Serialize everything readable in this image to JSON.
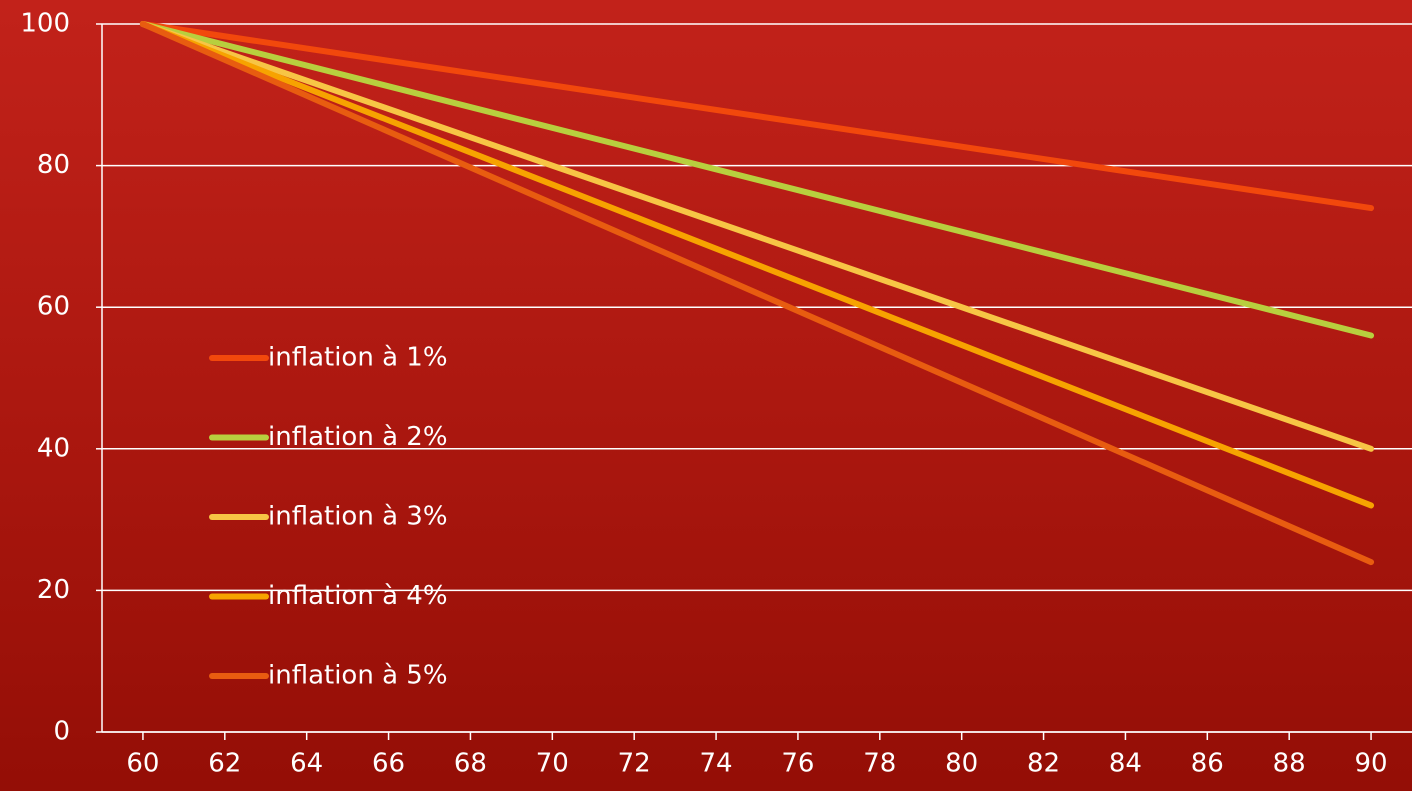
{
  "chart_data": {
    "type": "line",
    "x": [
      60,
      90
    ],
    "series": [
      {
        "name": "inflation à 1%",
        "color": "#f2480c",
        "values": [
          100,
          74
        ]
      },
      {
        "name": "inflation à 2%",
        "color": "#b8cf3e",
        "values": [
          100,
          56
        ]
      },
      {
        "name": "inflation à 3%",
        "color": "#f7c545",
        "values": [
          100,
          40
        ]
      },
      {
        "name": "inflation à 4%",
        "color": "#f7a300",
        "values": [
          100,
          32
        ]
      },
      {
        "name": "inflation à 5%",
        "color": "#e85c10",
        "values": [
          100,
          24
        ]
      }
    ],
    "xlim": [
      59,
      91
    ],
    "xticks": [
      60,
      62,
      64,
      66,
      68,
      70,
      72,
      74,
      76,
      78,
      80,
      82,
      84,
      86,
      88,
      90
    ],
    "ylim": [
      0,
      100
    ],
    "yticks": [
      0,
      20,
      40,
      60,
      80,
      100
    ],
    "grid": true,
    "legend": "left"
  }
}
